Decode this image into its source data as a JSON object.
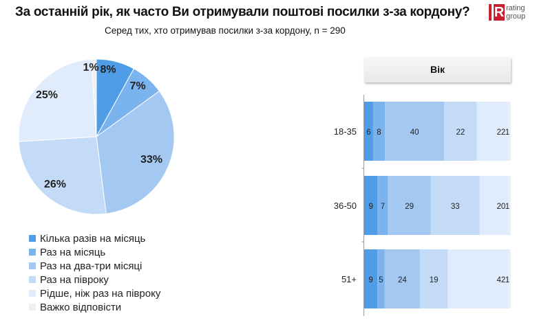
{
  "header": {
    "title": "За останній рік, як часто Ви отримували поштові посилки з-за кордону?",
    "subtitle": "Серед тих, хто отримував посилки з-за кордону, n = 290",
    "logo_text": [
      "rating",
      "group"
    ]
  },
  "chart_data": [
    {
      "type": "pie",
      "categories": [
        "Кілька разів на місяць",
        "Раз на місяць",
        "Раз на два-три місяці",
        "Раз на півроку",
        "Рідше, ніж раз на півроку",
        "Важко відповісти"
      ],
      "values": [
        8,
        7,
        33,
        26,
        25,
        1
      ],
      "labels": [
        "8%",
        "7%",
        "33%",
        "26%",
        "25%",
        "1%"
      ],
      "colors": [
        "#4f9de6",
        "#7ab3ee",
        "#a3c9f3",
        "#c4dbf7",
        "#e0ecfb",
        "#efeff2"
      ],
      "legend": "bottom-left"
    },
    {
      "type": "bar",
      "orientation": "horizontal-stacked-100",
      "header": "Вік",
      "categories": [
        "18-35",
        "36-50",
        "51+"
      ],
      "series": [
        {
          "name": "Кілька разів на місяць",
          "values": [
            6,
            9,
            9
          ]
        },
        {
          "name": "Раз на місяць",
          "values": [
            8,
            7,
            5
          ]
        },
        {
          "name": "Раз на два-три місяці",
          "values": [
            40,
            29,
            24
          ]
        },
        {
          "name": "Раз на півроку",
          "values": [
            22,
            33,
            19
          ]
        },
        {
          "name": "Рідше, ніж раз на півроку",
          "values": [
            22,
            20,
            42
          ]
        },
        {
          "name": "Важко відповісти",
          "values": [
            1,
            1,
            1
          ]
        }
      ],
      "colors": [
        "#4f9de6",
        "#7ab3ee",
        "#a3c9f3",
        "#c4dbf7",
        "#e0ecfb",
        "#efeff2"
      ]
    }
  ]
}
